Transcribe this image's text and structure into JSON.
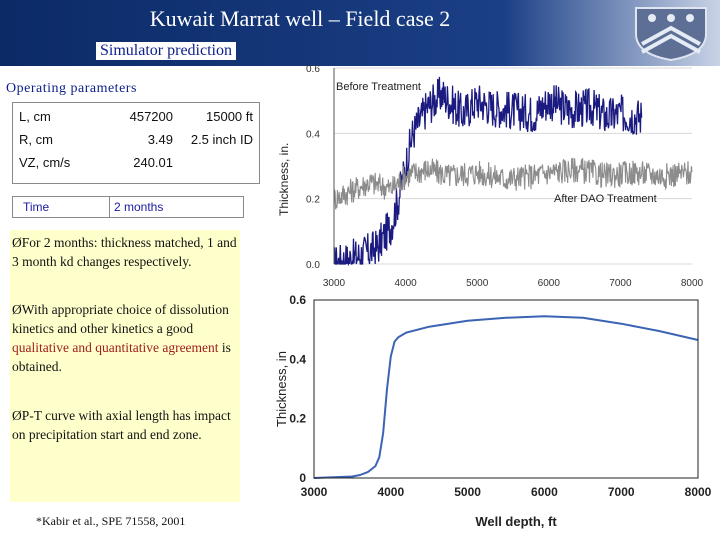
{
  "header": {
    "title": "Kuwait Marrat well – Field case 2",
    "subtitle": "Simulator prediction"
  },
  "operating": {
    "title": "Operating parameters",
    "rows": [
      {
        "label": "L, cm",
        "value": "457200",
        "extra": "15000 ft"
      },
      {
        "label": "R, cm",
        "value": "3.49",
        "extra": "2.5 inch ID"
      },
      {
        "label": "VZ, cm/s",
        "value": "240.01",
        "extra": ""
      }
    ],
    "time_label": "Time",
    "time_value": "2 months"
  },
  "notes": {
    "bullet": "Ø",
    "n1": "For 2 months: thickness matched, 1 and 3 month kd changes respectively.",
    "n2_pre": "With appropriate choice of dissolution kinetics and other kinetics a good ",
    "n2_hl": "qualitative and quantitative agreement",
    "n2_post": " is obtained.",
    "n3": "P-T curve with axial length has impact on precipitation start and end zone."
  },
  "reference": "*Kabir et al., SPE 71558, 2001",
  "colors": {
    "header_dark": "#0b2a66",
    "note_bg": "#ffffcc",
    "before_series": "#1a1a80",
    "after_series": "#8c8c8c",
    "sim_curve": "#3c64b4"
  },
  "chart_data": [
    {
      "type": "line",
      "title": "",
      "xlabel": "",
      "ylabel": "Thickness, in.",
      "xlim": [
        3000,
        8000
      ],
      "ylim": [
        0,
        0.6
      ],
      "x_ticks": [
        "3000",
        "4000",
        "5000",
        "6000",
        "7000",
        "8000"
      ],
      "y_ticks": [
        "0.0",
        "0.2",
        "0.4",
        "0.6"
      ],
      "annotations": [
        "Before Treatment",
        "After DAO Treatment"
      ],
      "series": [
        {
          "name": "Before Treatment",
          "x": [
            3000,
            3300,
            3600,
            3800,
            3900,
            4000,
            4100,
            4300,
            4500,
            4800,
            5000,
            5200,
            5500,
            5800,
            6000,
            6300,
            6600,
            6800,
            7000,
            7300
          ],
          "y": [
            0.0,
            0.02,
            0.05,
            0.12,
            0.2,
            0.3,
            0.4,
            0.48,
            0.52,
            0.46,
            0.5,
            0.48,
            0.47,
            0.46,
            0.5,
            0.47,
            0.48,
            0.45,
            0.46,
            0.45
          ]
        },
        {
          "name": "After DAO Treatment",
          "x": [
            3000,
            3200,
            3500,
            3800,
            4000,
            4300,
            4600,
            5000,
            5400,
            5800,
            6000,
            6400,
            6800,
            7200,
            7600,
            8000
          ],
          "y": [
            0.2,
            0.22,
            0.25,
            0.23,
            0.27,
            0.29,
            0.27,
            0.28,
            0.26,
            0.27,
            0.28,
            0.29,
            0.27,
            0.28,
            0.27,
            0.28
          ]
        }
      ]
    },
    {
      "type": "line",
      "title": "",
      "xlabel": "Well depth, ft",
      "ylabel": "Thickness, in",
      "xlim": [
        3000,
        8000
      ],
      "ylim": [
        0,
        0.6
      ],
      "x_ticks": [
        "3000",
        "4000",
        "5000",
        "6000",
        "7000",
        "8000"
      ],
      "y_ticks": [
        "0",
        "0.2",
        "0.4",
        "0.6"
      ],
      "series": [
        {
          "x": [
            3000,
            3500,
            3600,
            3700,
            3800,
            3850,
            3900,
            3950,
            4000,
            4050,
            4100,
            4200,
            4500,
            5000,
            5500,
            6000,
            6500,
            7000,
            7500,
            8000
          ],
          "y": [
            0.0,
            0.005,
            0.01,
            0.02,
            0.04,
            0.07,
            0.15,
            0.3,
            0.41,
            0.46,
            0.475,
            0.49,
            0.51,
            0.53,
            0.54,
            0.545,
            0.54,
            0.52,
            0.495,
            0.465
          ]
        }
      ]
    }
  ]
}
